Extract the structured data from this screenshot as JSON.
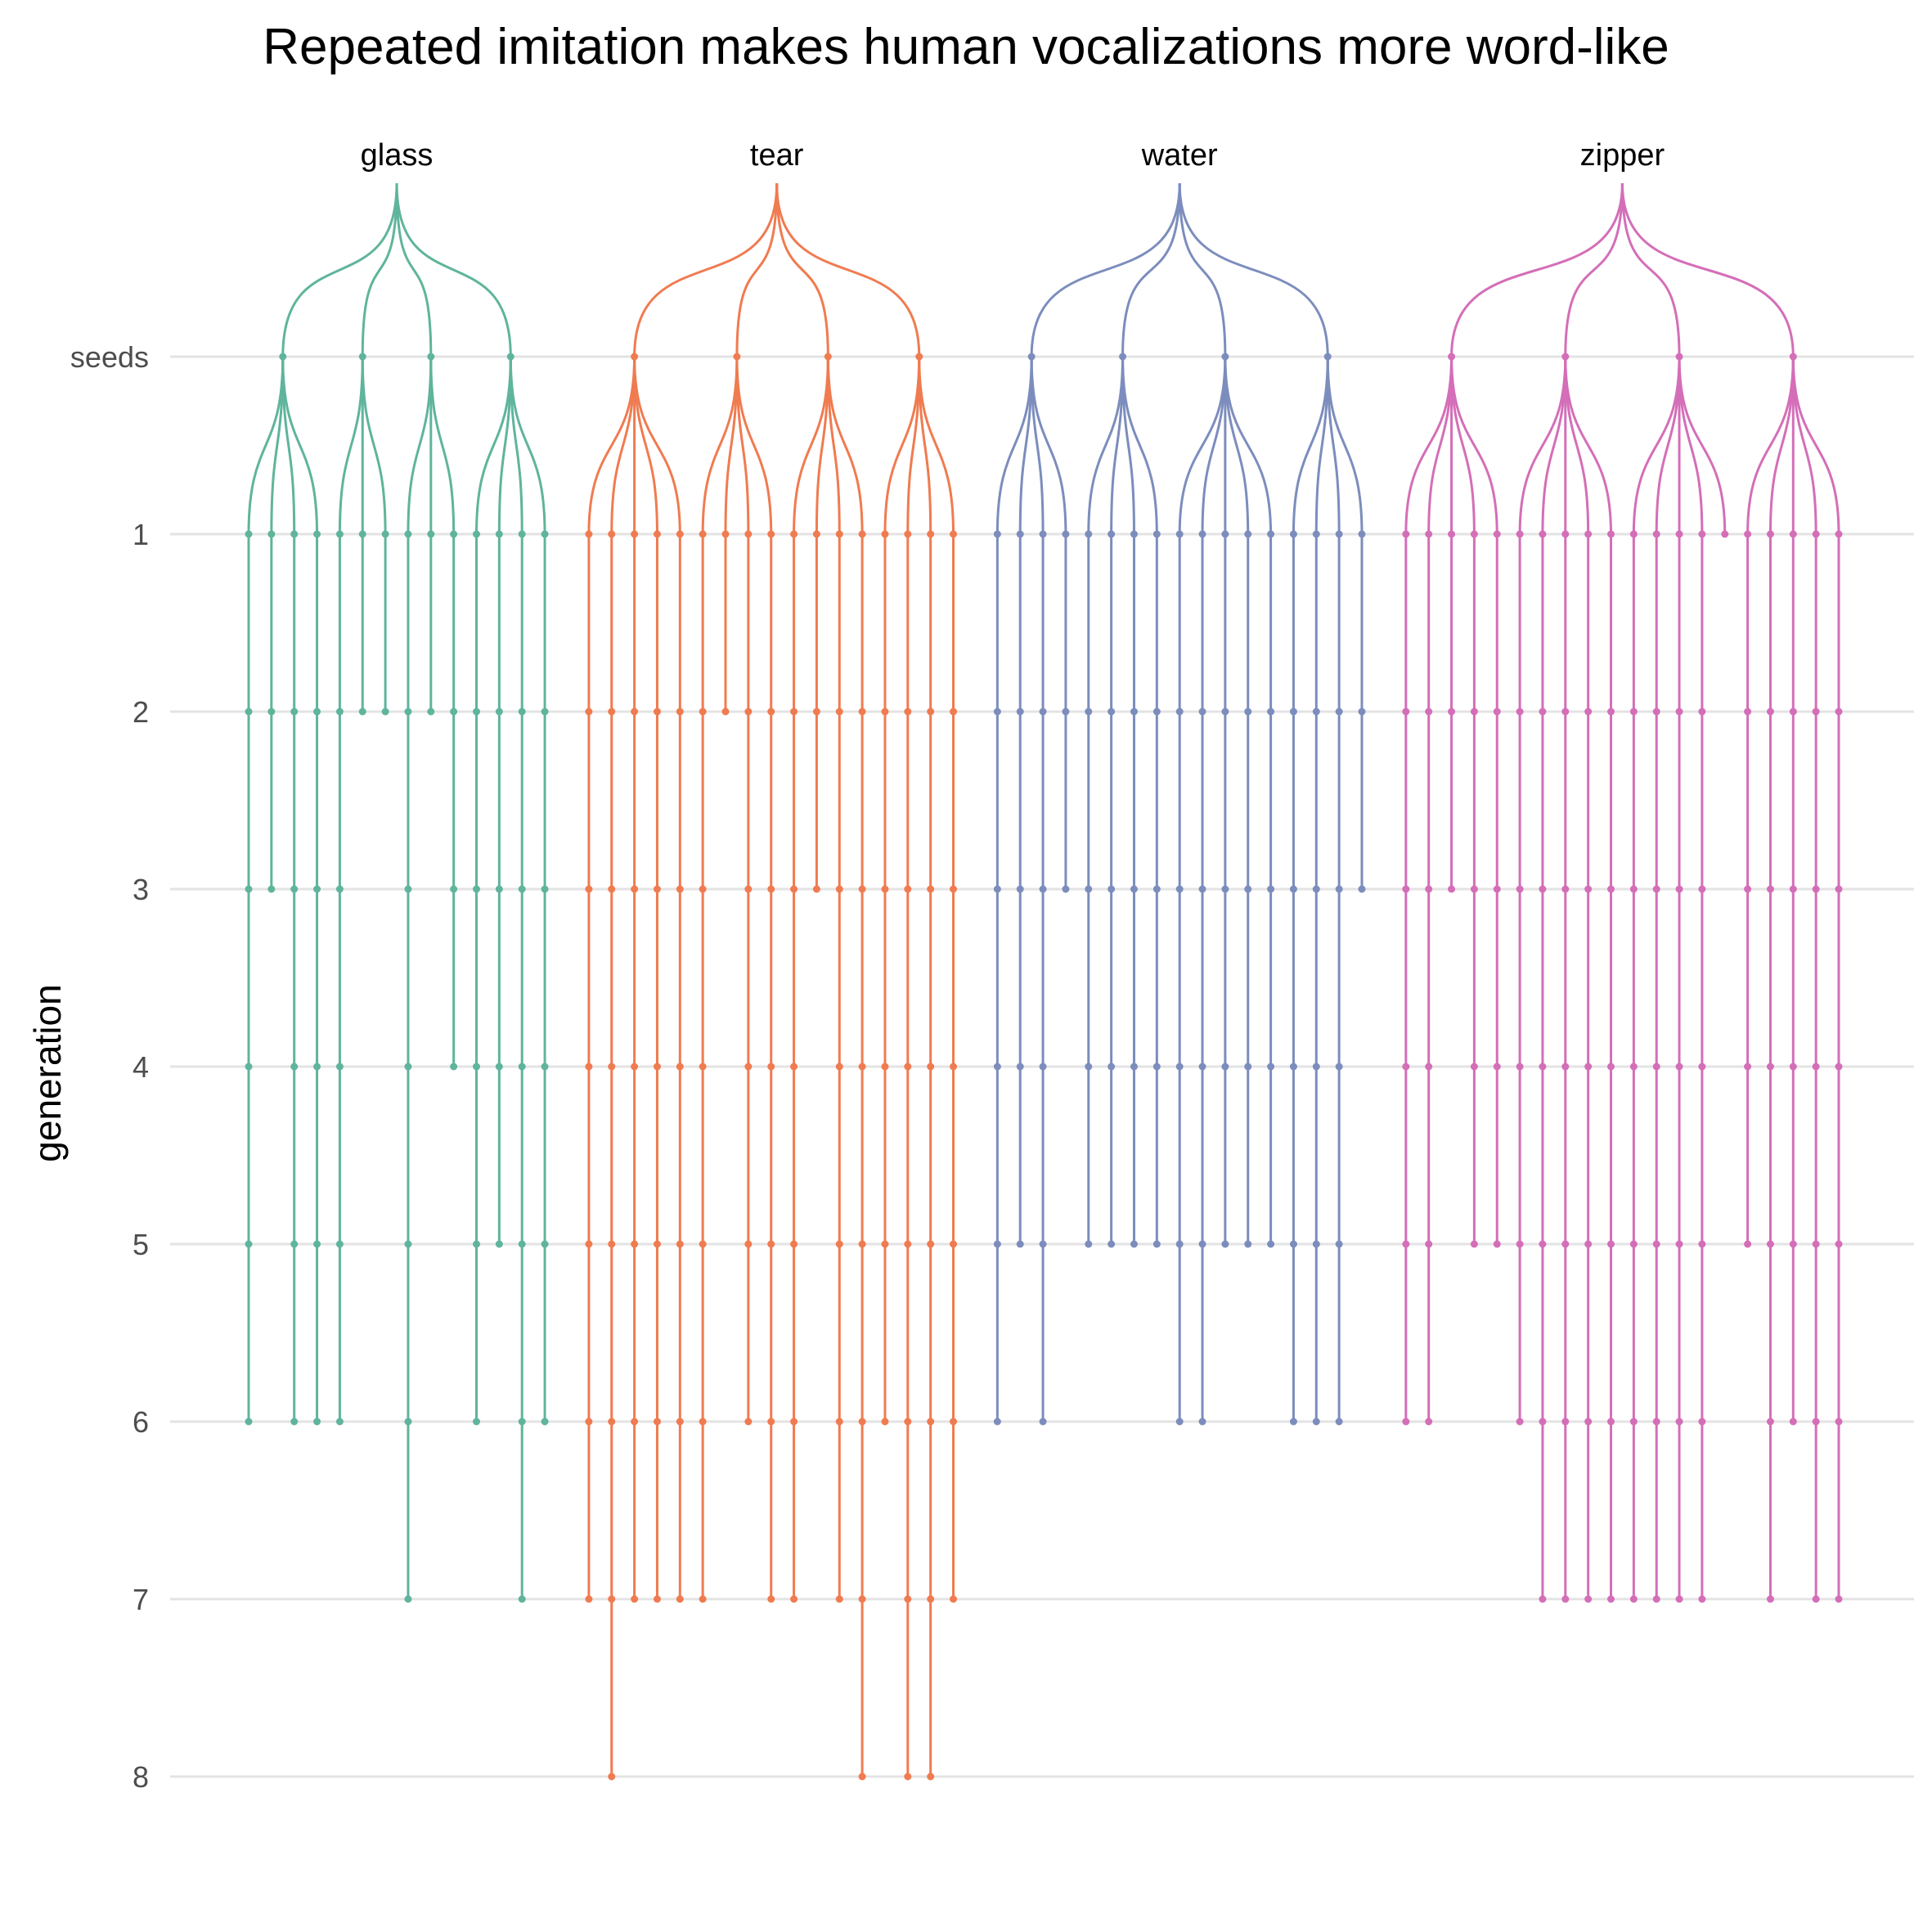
{
  "chart_data": {
    "type": "tree",
    "title": "Repeated imitation makes human vocalizations more word-like",
    "ylabel": "generation",
    "y_ticks": [
      "seeds",
      "1",
      "2",
      "3",
      "4",
      "5",
      "6",
      "7",
      "8"
    ],
    "grid": true,
    "legend": "none",
    "note": "Each seed lists the final generation reached by each of its imitation chains.",
    "groups": [
      {
        "name": "glass",
        "color": "#5fb49c",
        "seeds": [
          {
            "chains": [
              6,
              3,
              6,
              6
            ]
          },
          {
            "chains": [
              6,
              2,
              2
            ]
          },
          {
            "chains": [
              7,
              2,
              4
            ]
          },
          {
            "chains": [
              6,
              5,
              7,
              6
            ]
          }
        ]
      },
      {
        "name": "tear",
        "color": "#f07b50",
        "seeds": [
          {
            "chains": [
              7,
              8,
              7,
              7,
              7
            ]
          },
          {
            "chains": [
              7,
              2,
              6,
              7
            ]
          },
          {
            "chains": [
              7,
              3,
              7,
              8
            ]
          },
          {
            "chains": [
              6,
              8,
              8,
              7
            ]
          }
        ]
      },
      {
        "name": "water",
        "color": "#7c8dbd",
        "seeds": [
          {
            "chains": [
              6,
              5,
              6,
              3
            ]
          },
          {
            "chains": [
              5,
              5,
              5,
              5
            ]
          },
          {
            "chains": [
              6,
              6,
              5,
              5,
              5
            ]
          },
          {
            "chains": [
              6,
              6,
              6,
              3
            ]
          }
        ]
      },
      {
        "name": "zipper",
        "color": "#d46eb8",
        "seeds": [
          {
            "chains": [
              6,
              6,
              3,
              5,
              5
            ]
          },
          {
            "chains": [
              6,
              7,
              7,
              7,
              7
            ]
          },
          {
            "chains": [
              7,
              7,
              7,
              7,
              1
            ]
          },
          {
            "chains": [
              5,
              7,
              6,
              7,
              7
            ]
          }
        ]
      }
    ]
  }
}
